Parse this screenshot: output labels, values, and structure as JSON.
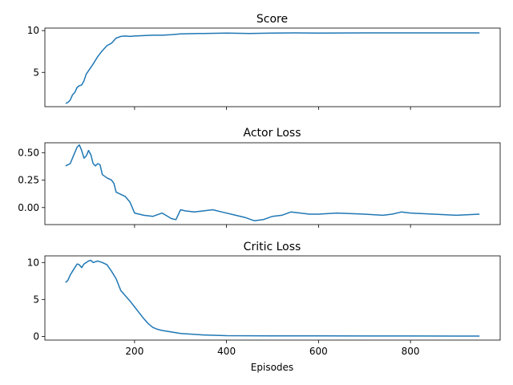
{
  "figure": {
    "xlabel": "Episodes",
    "series_color": "#1f77b4"
  },
  "chart_data": [
    {
      "type": "line",
      "title": "Score",
      "xlabel": "",
      "ylabel": "",
      "xlim": [
        5,
        995
      ],
      "ylim": [
        0.9,
        10.3
      ],
      "x_ticks": [
        200,
        400,
        600,
        800
      ],
      "y_ticks": [
        5,
        10
      ],
      "show_x_tick_labels": false,
      "grid": false,
      "x": [
        50,
        55,
        60,
        65,
        70,
        75,
        80,
        85,
        90,
        95,
        100,
        110,
        120,
        130,
        140,
        150,
        160,
        170,
        180,
        190,
        200,
        220,
        240,
        260,
        280,
        300,
        340,
        400,
        450,
        500,
        550,
        600,
        700,
        800,
        900,
        950
      ],
      "y": [
        1.3,
        1.4,
        1.7,
        2.3,
        2.6,
        3.2,
        3.4,
        3.5,
        4.0,
        4.8,
        5.2,
        6.0,
        6.9,
        7.6,
        8.2,
        8.5,
        9.1,
        9.3,
        9.35,
        9.3,
        9.35,
        9.4,
        9.45,
        9.45,
        9.5,
        9.6,
        9.65,
        9.7,
        9.65,
        9.7,
        9.72,
        9.7,
        9.72,
        9.72,
        9.72,
        9.72
      ]
    },
    {
      "type": "line",
      "title": "Actor Loss",
      "xlabel": "",
      "ylabel": "",
      "xlim": [
        5,
        995
      ],
      "ylim": [
        -0.155,
        0.59
      ],
      "x_ticks": [
        200,
        400,
        600,
        800
      ],
      "y_ticks": [
        0.0,
        0.25,
        0.5
      ],
      "y_tick_labels": [
        "0.00",
        "0.25",
        "0.50"
      ],
      "show_x_tick_labels": false,
      "grid": false,
      "x": [
        50,
        55,
        60,
        65,
        70,
        75,
        80,
        85,
        90,
        95,
        100,
        105,
        110,
        115,
        120,
        125,
        130,
        140,
        145,
        150,
        155,
        160,
        170,
        180,
        190,
        200,
        210,
        220,
        240,
        260,
        280,
        290,
        300,
        310,
        330,
        350,
        370,
        390,
        420,
        440,
        460,
        480,
        500,
        520,
        540,
        560,
        580,
        600,
        640,
        700,
        740,
        760,
        780,
        800,
        850,
        900,
        950
      ],
      "y": [
        0.38,
        0.39,
        0.4,
        0.45,
        0.5,
        0.55,
        0.57,
        0.52,
        0.45,
        0.47,
        0.52,
        0.48,
        0.4,
        0.38,
        0.4,
        0.39,
        0.3,
        0.27,
        0.26,
        0.25,
        0.22,
        0.14,
        0.12,
        0.1,
        0.05,
        -0.05,
        -0.06,
        -0.07,
        -0.08,
        -0.05,
        -0.1,
        -0.11,
        -0.02,
        -0.03,
        -0.04,
        -0.03,
        -0.02,
        -0.04,
        -0.07,
        -0.09,
        -0.12,
        -0.11,
        -0.08,
        -0.07,
        -0.04,
        -0.05,
        -0.06,
        -0.06,
        -0.05,
        -0.06,
        -0.07,
        -0.06,
        -0.04,
        -0.05,
        -0.06,
        -0.07,
        -0.06
      ]
    },
    {
      "type": "line",
      "title": "Critic Loss",
      "xlabel": "Episodes",
      "ylabel": "",
      "xlim": [
        5,
        995
      ],
      "ylim": [
        -0.5,
        10.9
      ],
      "x_ticks": [
        200,
        400,
        600,
        800
      ],
      "y_ticks": [
        0,
        5,
        10
      ],
      "show_x_tick_labels": true,
      "grid": false,
      "x": [
        50,
        55,
        60,
        65,
        70,
        75,
        80,
        85,
        90,
        100,
        105,
        110,
        120,
        130,
        140,
        150,
        160,
        170,
        180,
        190,
        200,
        210,
        220,
        230,
        240,
        250,
        260,
        280,
        300,
        350,
        400,
        500,
        600,
        700,
        800,
        900,
        950
      ],
      "y": [
        7.3,
        7.6,
        8.3,
        8.8,
        9.3,
        9.8,
        9.7,
        9.3,
        9.8,
        10.2,
        10.3,
        10.0,
        10.2,
        10.0,
        9.7,
        8.8,
        7.8,
        6.2,
        5.5,
        4.8,
        4.0,
        3.2,
        2.4,
        1.7,
        1.2,
        0.95,
        0.8,
        0.6,
        0.4,
        0.2,
        0.1,
        0.08,
        0.06,
        0.05,
        0.05,
        0.04,
        0.04
      ]
    }
  ]
}
